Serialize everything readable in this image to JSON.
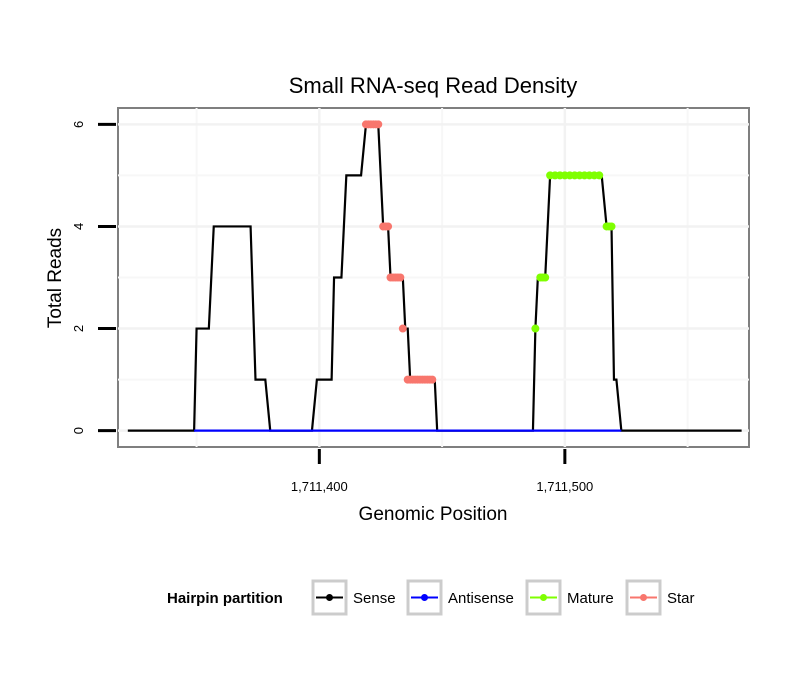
{
  "chart_data": {
    "type": "line",
    "title": "Small RNA-seq Read Density",
    "xlabel": "Genomic Position",
    "ylabel": "Total Reads",
    "xlim": [
      1711318,
      1711575
    ],
    "ylim": [
      -0.32,
      6.32
    ],
    "x_ticks": [
      1711400,
      1711500
    ],
    "x_tick_labels": [
      "1,711,400",
      "1,711,500"
    ],
    "y_ticks": [
      0,
      2,
      4,
      6
    ],
    "y_tick_labels": [
      "0",
      "2",
      "4",
      "6"
    ],
    "grid": true,
    "legend": {
      "title": "Hairpin partition",
      "position": "bottom",
      "entries": [
        "Sense",
        "Antisense",
        "Mature",
        "Star"
      ]
    },
    "series": [
      {
        "name": "Sense",
        "color": "#000000",
        "style": "line",
        "points": [
          [
            1711322,
            0
          ],
          [
            1711349,
            0
          ],
          [
            1711350,
            2
          ],
          [
            1711355,
            2
          ],
          [
            1711357,
            4
          ],
          [
            1711372,
            4
          ],
          [
            1711374,
            1
          ],
          [
            1711378,
            1
          ],
          [
            1711380,
            0
          ],
          [
            1711397,
            0
          ],
          [
            1711399,
            1
          ],
          [
            1711405,
            1
          ],
          [
            1711406,
            3
          ],
          [
            1711409,
            3
          ],
          [
            1711411,
            5
          ],
          [
            1711417,
            5
          ],
          [
            1711419,
            6
          ],
          [
            1711424,
            6
          ],
          [
            1711426,
            4
          ],
          [
            1711428,
            4
          ],
          [
            1711429,
            3
          ],
          [
            1711434,
            3
          ],
          [
            1711435,
            2
          ],
          [
            1711436,
            2
          ],
          [
            1711437,
            1
          ],
          [
            1711447,
            1
          ],
          [
            1711448,
            0
          ],
          [
            1711487,
            0
          ],
          [
            1711488,
            2
          ],
          [
            1711489,
            3
          ],
          [
            1711492,
            3
          ],
          [
            1711494,
            5
          ],
          [
            1711515,
            5
          ],
          [
            1711517,
            4
          ],
          [
            1711519,
            4
          ],
          [
            1711520,
            1
          ],
          [
            1711521,
            1
          ],
          [
            1711523,
            0
          ],
          [
            1711572,
            0
          ]
        ]
      },
      {
        "name": "Antisense",
        "color": "#0000ff",
        "style": "line",
        "points": [
          [
            1711349,
            0
          ],
          [
            1711448,
            0
          ],
          [
            1711487,
            0
          ],
          [
            1711523,
            0
          ]
        ]
      },
      {
        "name": "Mature",
        "color": "#7fff00",
        "style": "points",
        "points": [
          [
            1711488,
            2
          ],
          [
            1711490,
            3
          ],
          [
            1711491,
            3
          ],
          [
            1711492,
            3
          ],
          [
            1711494,
            5
          ],
          [
            1711496,
            5
          ],
          [
            1711498,
            5
          ],
          [
            1711500,
            5
          ],
          [
            1711502,
            5
          ],
          [
            1711504,
            5
          ],
          [
            1711506,
            5
          ],
          [
            1711508,
            5
          ],
          [
            1711510,
            5
          ],
          [
            1711512,
            5
          ],
          [
            1711514,
            5
          ],
          [
            1711517,
            4
          ],
          [
            1711518,
            4
          ],
          [
            1711519,
            4
          ]
        ]
      },
      {
        "name": "Star",
        "color": "#f8766d",
        "style": "points",
        "points": [
          [
            1711419,
            6
          ],
          [
            1711420,
            6
          ],
          [
            1711421,
            6
          ],
          [
            1711422,
            6
          ],
          [
            1711423,
            6
          ],
          [
            1711424,
            6
          ],
          [
            1711426,
            4
          ],
          [
            1711427,
            4
          ],
          [
            1711428,
            4
          ],
          [
            1711429,
            3
          ],
          [
            1711430,
            3
          ],
          [
            1711431,
            3
          ],
          [
            1711432,
            3
          ],
          [
            1711433,
            3
          ],
          [
            1711434,
            2
          ],
          [
            1711436,
            1
          ],
          [
            1711437,
            1
          ],
          [
            1711438,
            1
          ],
          [
            1711439,
            1
          ],
          [
            1711440,
            1
          ],
          [
            1711441,
            1
          ],
          [
            1711442,
            1
          ],
          [
            1711443,
            1
          ],
          [
            1711444,
            1
          ],
          [
            1711445,
            1
          ],
          [
            1711446,
            1
          ]
        ]
      }
    ]
  }
}
